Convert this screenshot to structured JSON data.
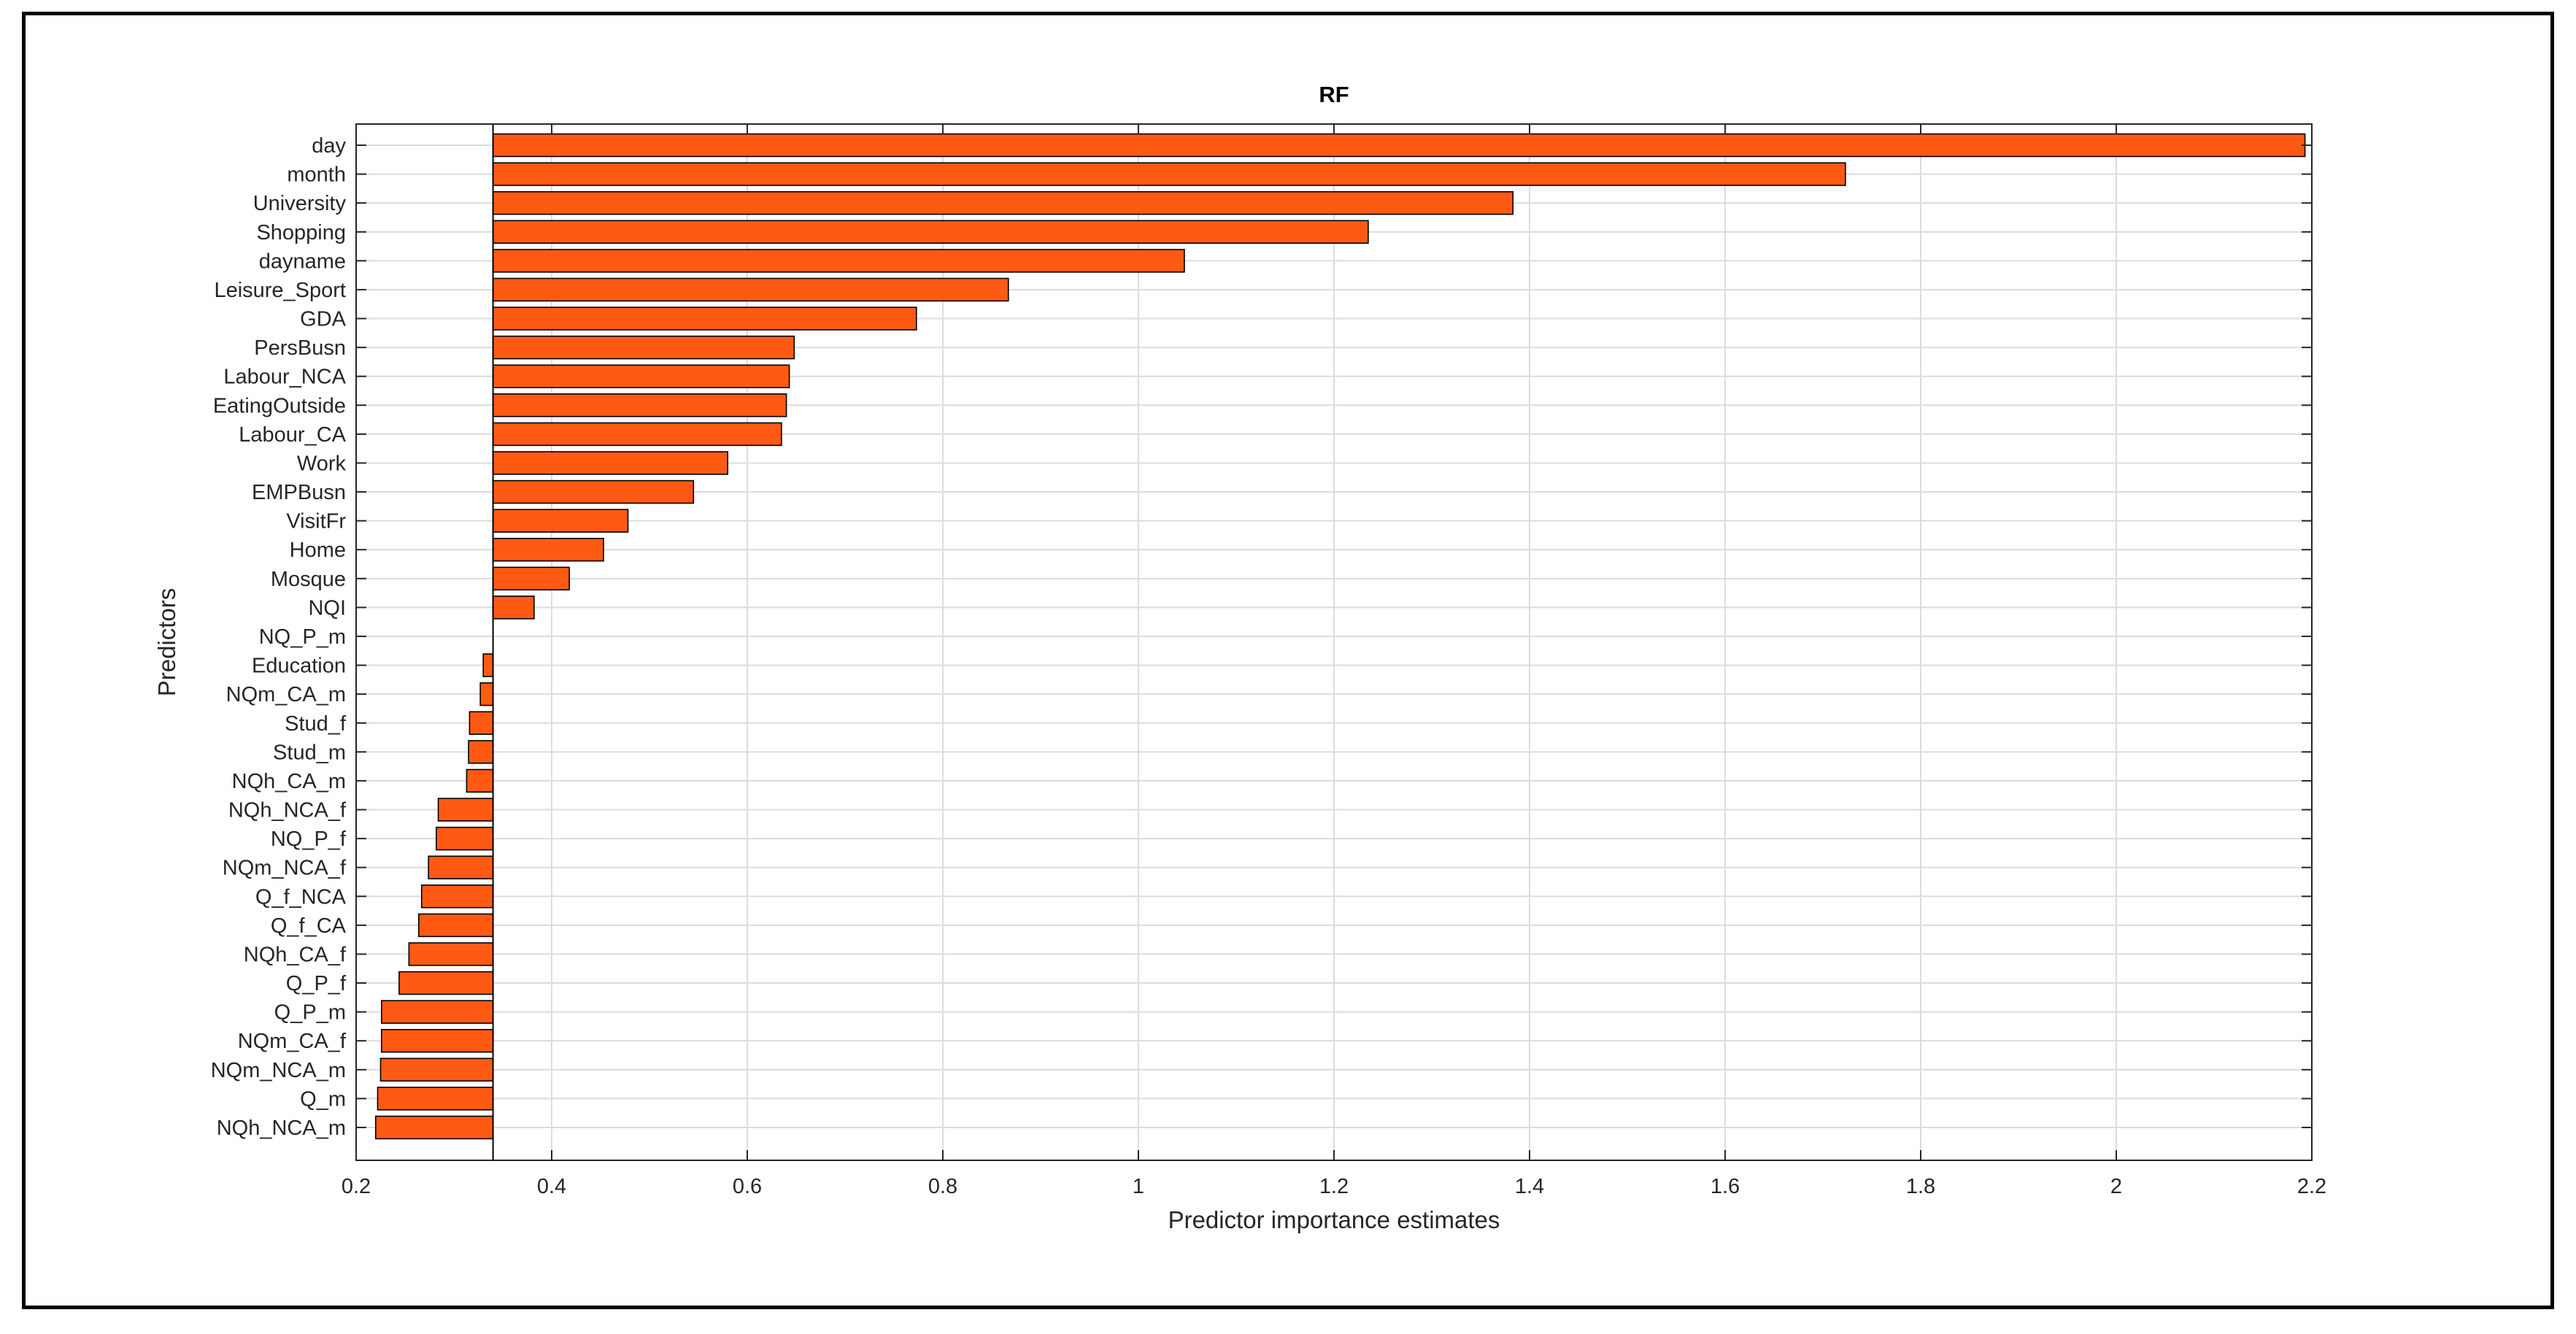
{
  "chart_data": {
    "type": "bar",
    "orientation": "horizontal",
    "title": "RF",
    "xlabel": "Predictor importance estimates",
    "ylabel": "Predictors",
    "xlim": [
      0.2,
      2.2
    ],
    "x_ticks": [
      "0.2",
      "0.4",
      "0.6",
      "0.8",
      "1",
      "1.2",
      "1.4",
      "1.6",
      "1.8",
      "2",
      "2.2"
    ],
    "baseline": 0.34,
    "grid": true,
    "bar_color": "#ff5a14",
    "bar_edge_color": "#000000",
    "categories": [
      "day",
      "month",
      "University",
      "Shopping",
      "dayname",
      "Leisure_Sport",
      "GDA",
      "PersBusn",
      "Labour_NCA",
      "EatingOutside",
      "Labour_CA",
      "Work",
      "EMPBusn",
      "VisitFr",
      "Home",
      "Mosque",
      "NQI",
      "NQ_P_m",
      "Education",
      "NQm_CA_m",
      "Stud_f",
      "Stud_m",
      "NQh_CA_m",
      "NQh_NCA_f",
      "NQ_P_f",
      "NQm_NCA_f",
      "Q_f_NCA",
      "Q_f_CA",
      "NQh_CA_f",
      "Q_P_f",
      "Q_P_m",
      "NQm_CA_f",
      "NQm_NCA_m",
      "Q_m",
      "NQh_NCA_m"
    ],
    "values": [
      2.193,
      1.723,
      1.383,
      1.235,
      1.047,
      0.867,
      0.773,
      0.648,
      0.643,
      0.64,
      0.635,
      0.58,
      0.545,
      0.478,
      0.453,
      0.418,
      0.382,
      0.34,
      0.33,
      0.327,
      0.316,
      0.315,
      0.313,
      0.284,
      0.282,
      0.274,
      0.267,
      0.264,
      0.254,
      0.244,
      0.226,
      0.226,
      0.225,
      0.222,
      0.22
    ]
  }
}
